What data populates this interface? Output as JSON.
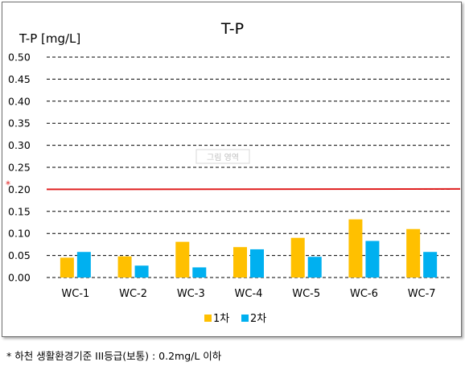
{
  "chart_data": {
    "type": "bar",
    "title": "T-P",
    "ylabel": "T-P  [mg/L]",
    "xlabel": "",
    "ylim": [
      0,
      0.5
    ],
    "yticks": [
      "0.00",
      "0.05",
      "0.10",
      "0.15",
      "0.20",
      "0.25",
      "0.30",
      "0.35",
      "0.40",
      "0.45",
      "0.50"
    ],
    "categories": [
      "WC-1",
      "WC-2",
      "WC-3",
      "WC-4",
      "WC-5",
      "WC-6",
      "WC-7"
    ],
    "series": [
      {
        "name": "1차",
        "color": "#FFC000",
        "values": [
          0.045,
          0.048,
          0.081,
          0.069,
          0.09,
          0.132,
          0.11
        ]
      },
      {
        "name": "2차",
        "color": "#00B0F0",
        "values": [
          0.058,
          0.027,
          0.023,
          0.064,
          0.047,
          0.083,
          0.058
        ]
      }
    ],
    "grid": "dashed horizontal",
    "legend": "bottom",
    "reference_line": {
      "value": 0.2,
      "color": "#E02020",
      "marker": "*"
    },
    "placeholder_label": "그림 영역"
  },
  "footnote": "* 하천 생활환경기준 III등급(보통) : 0.2mg/L 이하"
}
